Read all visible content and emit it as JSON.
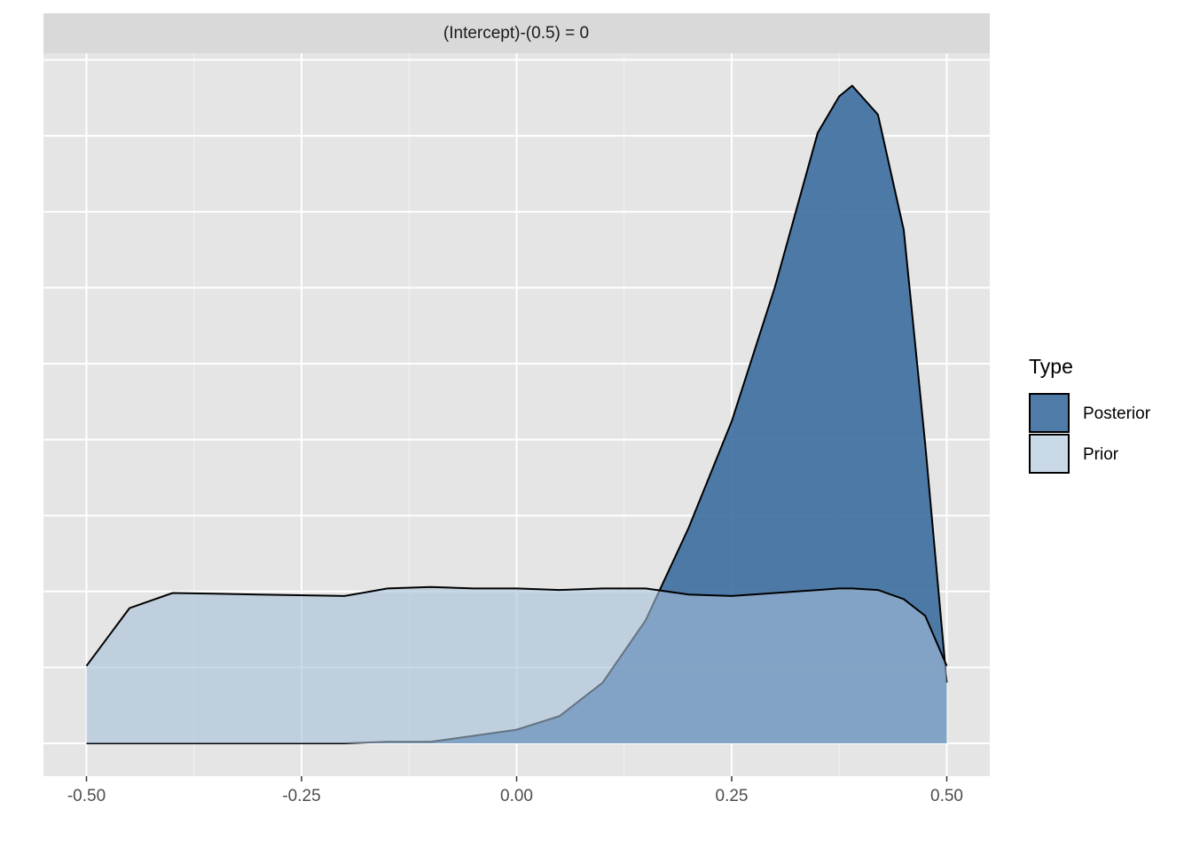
{
  "chart_data": {
    "type": "area",
    "title": "(Intercept)-(0.5) = 0",
    "x": [
      -0.5,
      -0.45,
      -0.4,
      -0.3,
      -0.2,
      -0.15,
      -0.1,
      -0.05,
      0,
      0.05,
      0.1,
      0.15,
      0.2,
      0.25,
      0.3,
      0.35,
      0.375,
      0.39,
      0.42,
      0.45,
      0.475,
      0.5
    ],
    "series": [
      {
        "name": "Posterior",
        "color": "#3c6da0",
        "values": [
          0,
          0,
          0,
          0,
          0,
          0.01,
          0.01,
          0.05,
          0.09,
          0.18,
          0.4,
          0.81,
          1.42,
          2.12,
          3.0,
          4.02,
          4.26,
          4.33,
          4.14,
          3.38,
          1.97,
          0.4
        ]
      },
      {
        "name": "Prior",
        "color": "#a6c0d8",
        "values": [
          0.51,
          0.89,
          0.99,
          0.98,
          0.97,
          1.02,
          1.03,
          1.02,
          1.02,
          1.01,
          1.02,
          1.02,
          0.98,
          0.97,
          0.99,
          1.01,
          1.02,
          1.02,
          1.01,
          0.95,
          0.84,
          0.51
        ]
      }
    ],
    "legend_title": "Type",
    "xlim": [
      -0.55,
      0.55
    ],
    "xticks": [
      {
        "value": -0.5,
        "label": "-0.50"
      },
      {
        "value": -0.25,
        "label": "-0.25"
      },
      {
        "value": 0,
        "label": "0.00"
      },
      {
        "value": 0.25,
        "label": "0.25"
      },
      {
        "value": 0.5,
        "label": "0.50"
      }
    ],
    "x_minor_ticks": [
      -0.375,
      -0.125,
      0.125,
      0.375
    ],
    "ylim": [
      -0.216,
      4.544
    ],
    "yticks": [
      0,
      0.5,
      1,
      1.5,
      2,
      2.5,
      3,
      3.5,
      4,
      4.5
    ],
    "grid": true
  }
}
